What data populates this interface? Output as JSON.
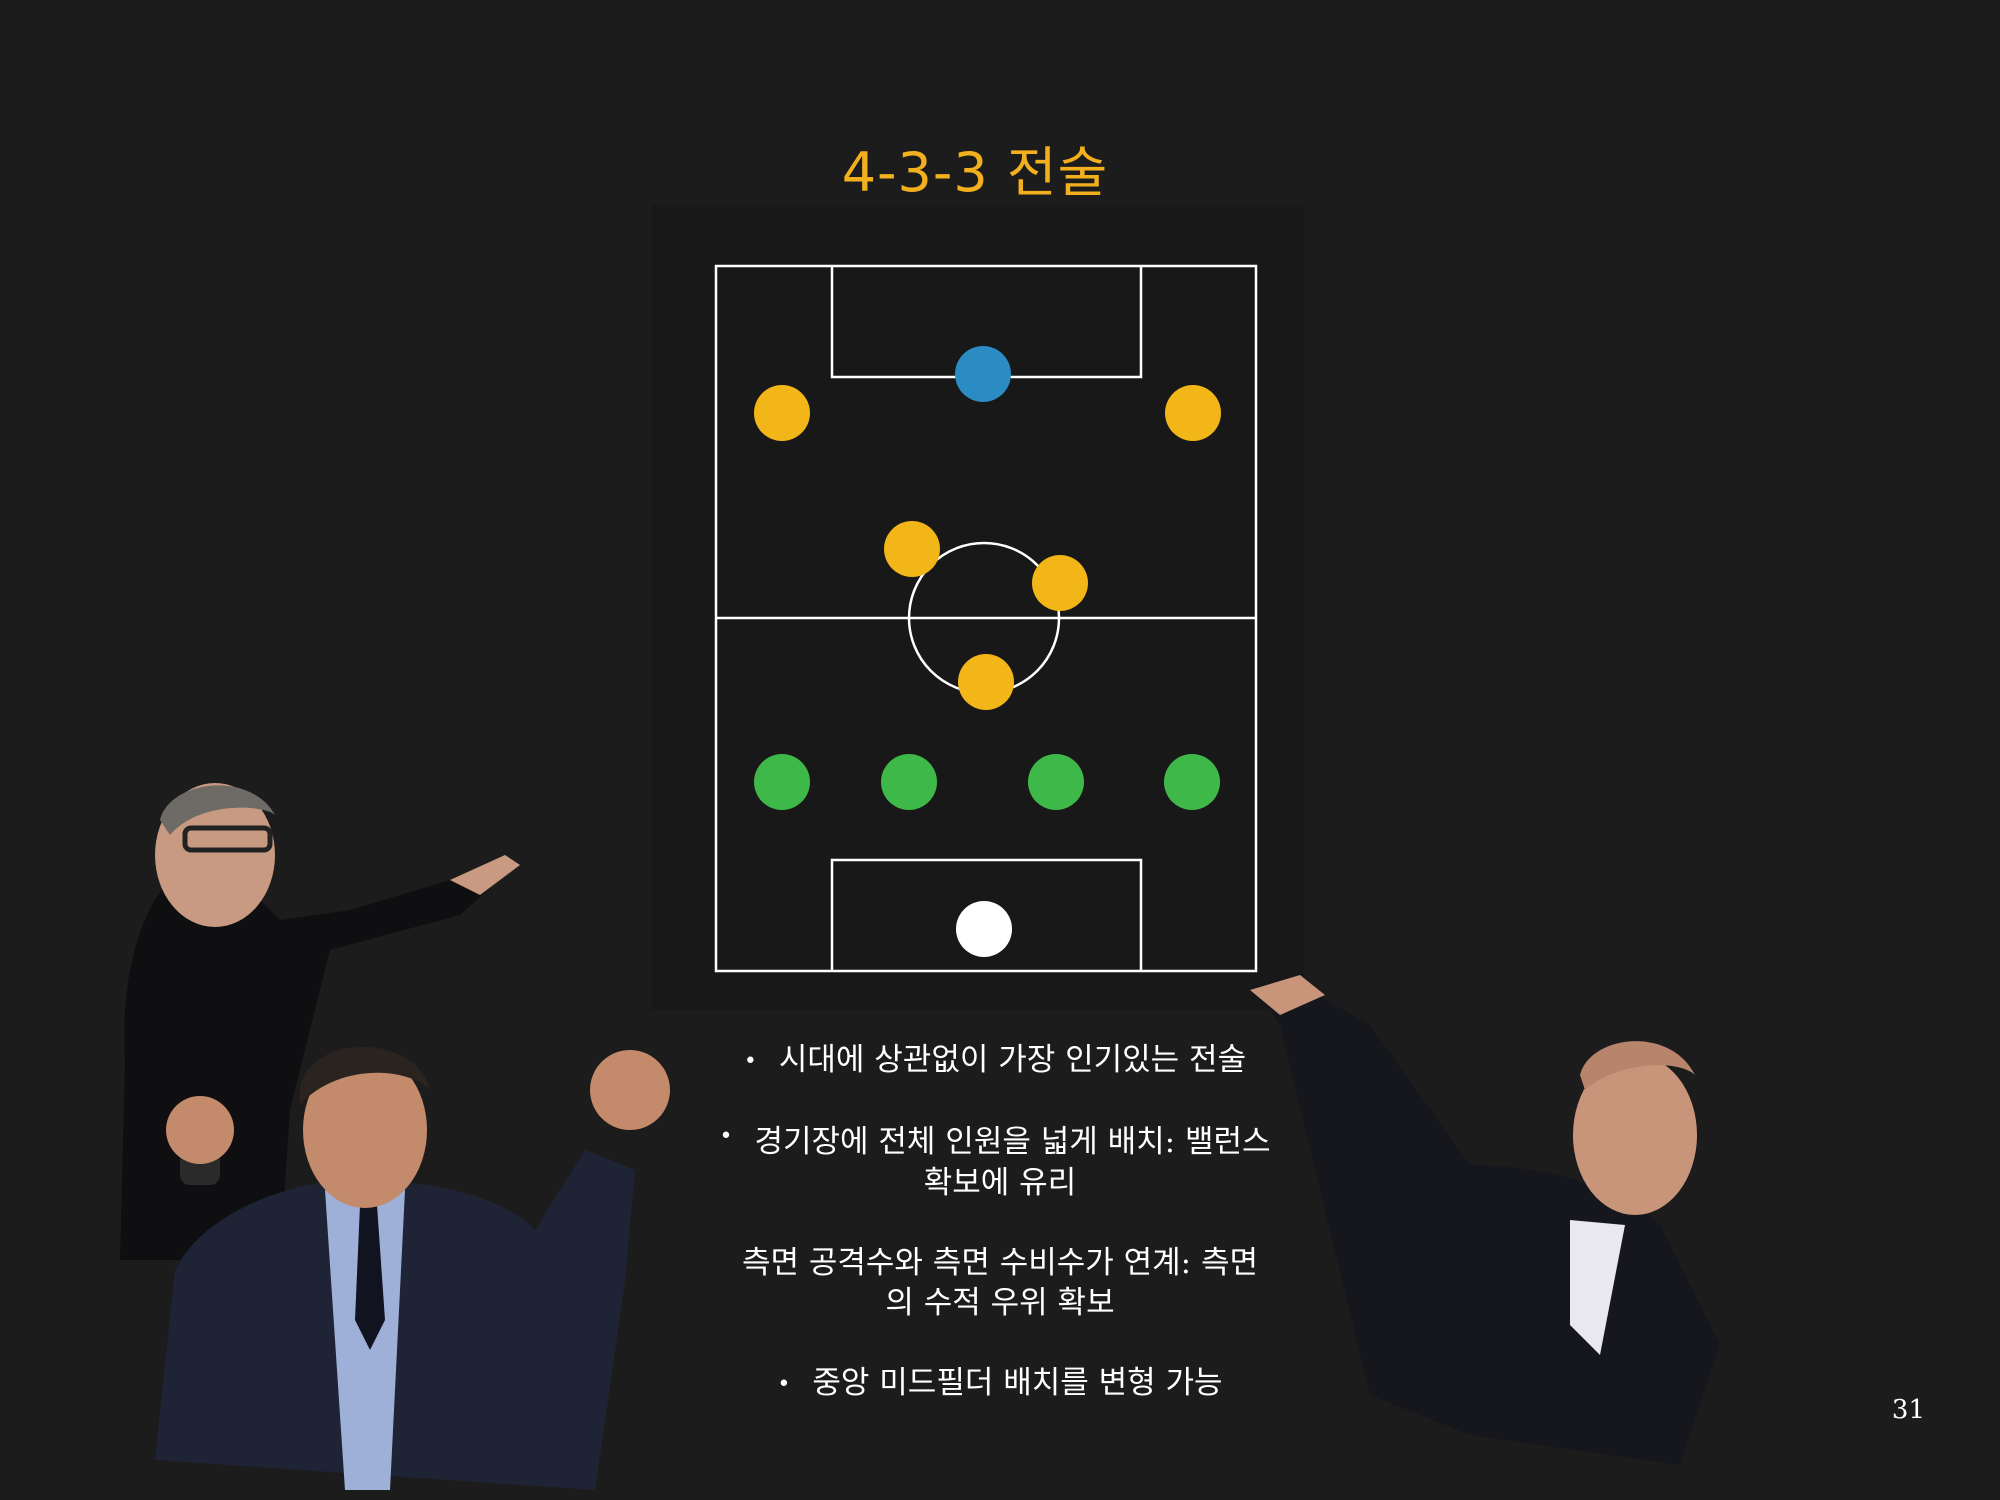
{
  "slide": {
    "title": "4-3-3 전술",
    "page_number": "31"
  },
  "formation": {
    "name": "4-3-3",
    "colors": {
      "forwards": "#f3b619",
      "midfielders": "#f3b619",
      "defenders": "#3fb84a",
      "goalkeeper": "#ffffff",
      "ball": "#2b8cc4",
      "lines": "#ffffff"
    },
    "players": [
      {
        "role": "forward",
        "pos": "LW"
      },
      {
        "role": "forward",
        "pos": "RW"
      },
      {
        "role": "ball",
        "pos": "CF"
      },
      {
        "role": "midfielder",
        "pos": "LCM"
      },
      {
        "role": "midfielder",
        "pos": "RCM"
      },
      {
        "role": "midfielder",
        "pos": "CDM"
      },
      {
        "role": "defender",
        "pos": "LB"
      },
      {
        "role": "defender",
        "pos": "LCB"
      },
      {
        "role": "defender",
        "pos": "RCB"
      },
      {
        "role": "defender",
        "pos": "RB"
      },
      {
        "role": "goalkeeper",
        "pos": "GK"
      }
    ]
  },
  "bullets": [
    {
      "text": "시대에 상관없이 가장 인기있는 전술"
    },
    {
      "line1": "경기장에 전체 인원을 넓게 배치: 밸런스",
      "line2": "확보에 유리"
    },
    {
      "line1": "측면 공격수와 측면 수비수가 연계: 측면",
      "line2": "의 수적 우위 확보"
    },
    {
      "text": "중앙 미드필더 배치를 변형 가능"
    }
  ]
}
